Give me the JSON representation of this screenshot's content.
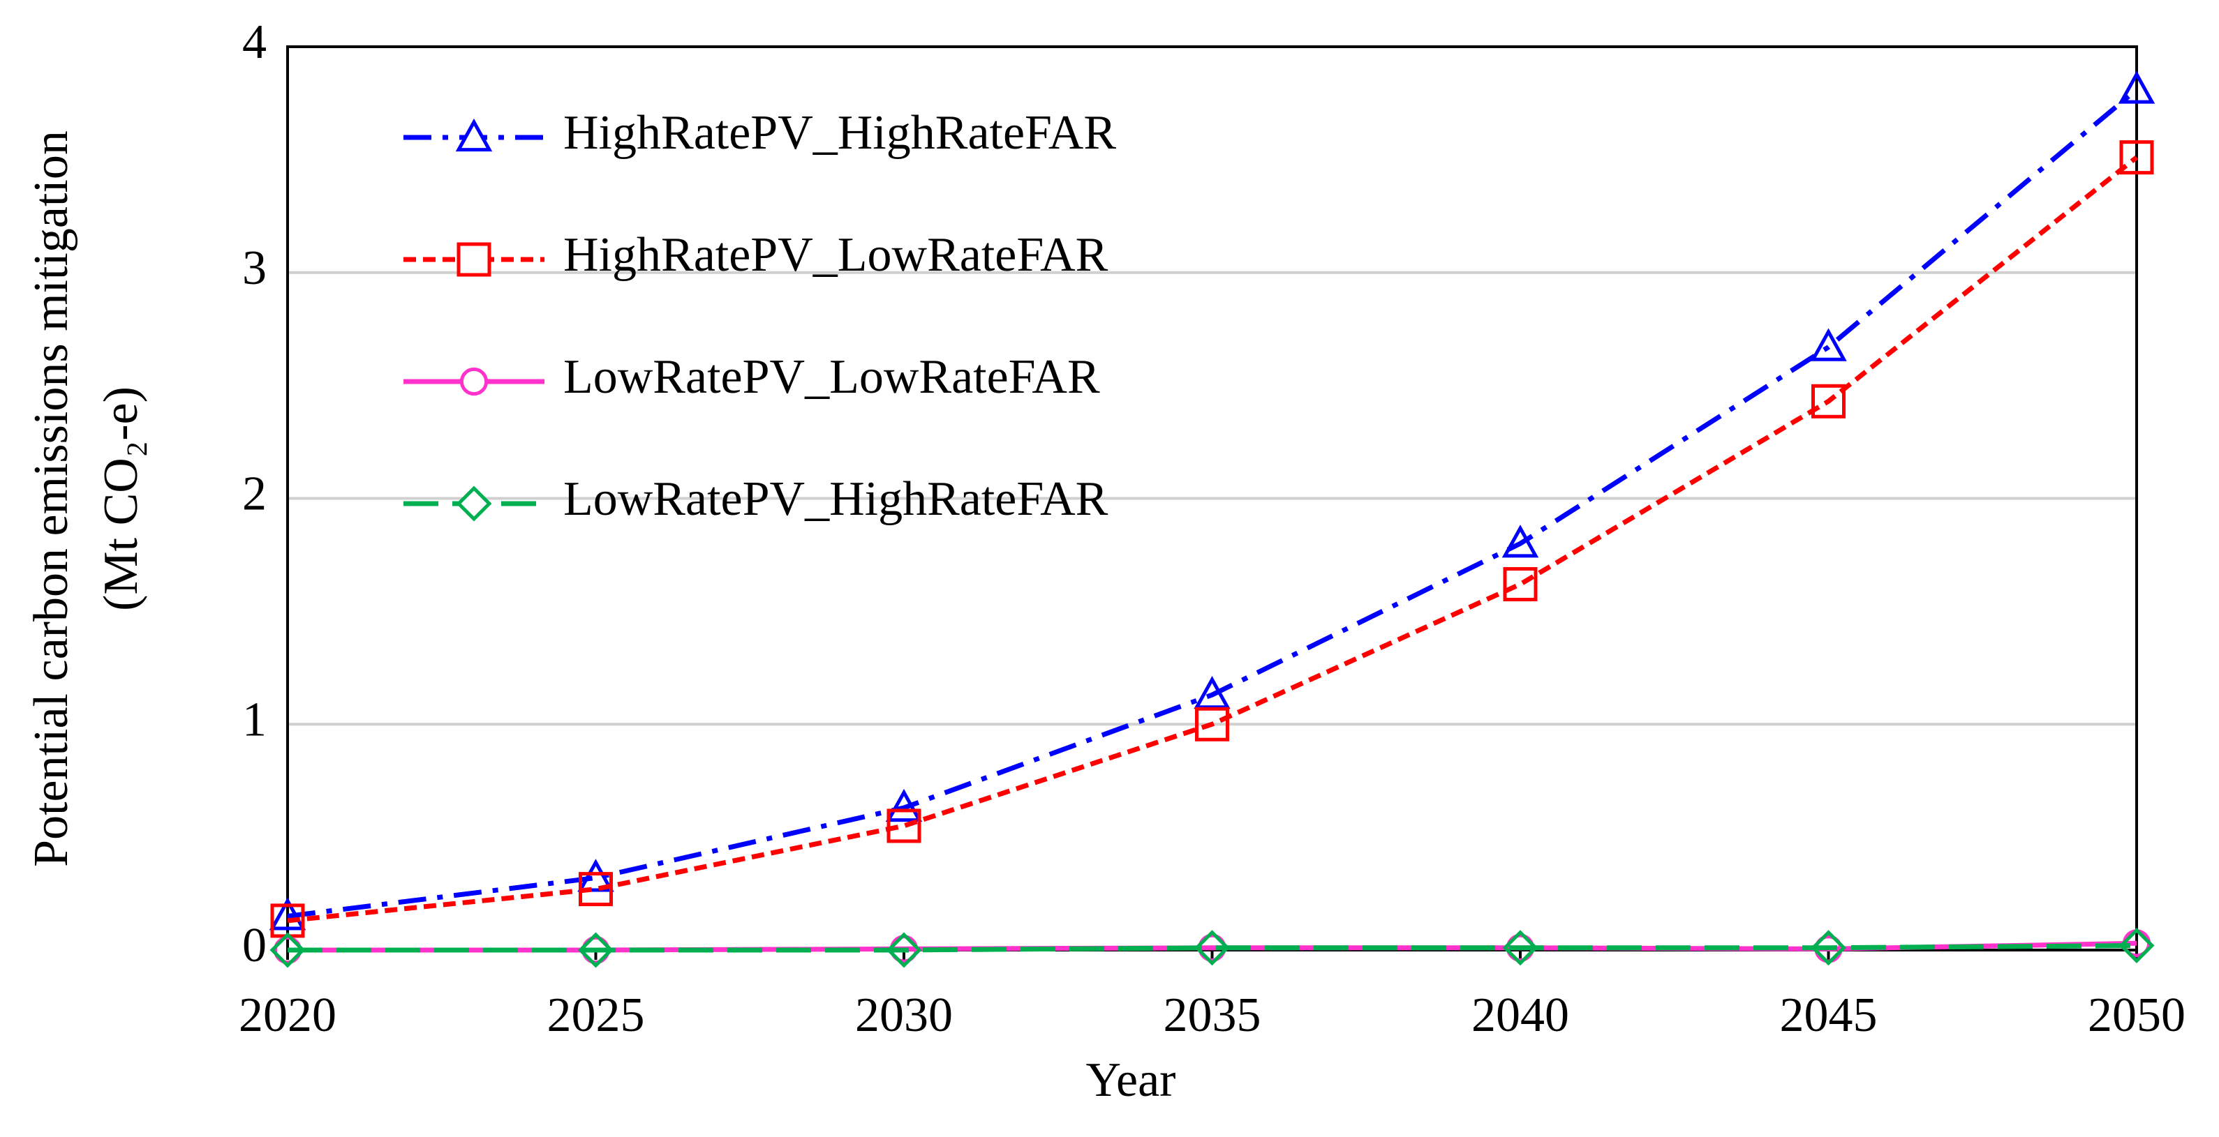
{
  "chart_data": {
    "type": "line",
    "y_label_line1": "Potential carbon emissions mitigation",
    "y_label_line2": "(Mt CO₂-e)",
    "x_label": "Year",
    "x": [
      2020,
      2025,
      2030,
      2035,
      2040,
      2045,
      2050
    ],
    "xlim": [
      2020,
      2050
    ],
    "xticks": [
      2020,
      2025,
      2030,
      2035,
      2040,
      2045,
      2050
    ],
    "ylim": [
      0,
      4
    ],
    "yticks": [
      0,
      1,
      2,
      3,
      4
    ],
    "grid": true,
    "legend": "upper-left",
    "series": [
      {
        "name": "HighRatePV_HighRateFAR",
        "color": "#0000ff",
        "marker": "triangle",
        "dash": "dashdot",
        "values": [
          0.15,
          0.32,
          0.63,
          1.13,
          1.8,
          2.67,
          3.81
        ]
      },
      {
        "name": "HighRatePV_LowRateFAR",
        "color": "#ff0000",
        "marker": "square",
        "dash": "dashed",
        "values": [
          0.13,
          0.27,
          0.55,
          1.0,
          1.62,
          2.43,
          3.51
        ]
      },
      {
        "name": "LowRatePV_LowRateFAR",
        "color": "#ff33cc",
        "marker": "circle",
        "dash": "solid",
        "values": [
          0,
          0,
          0.005,
          0.01,
          0.01,
          0.005,
          0.03
        ]
      },
      {
        "name": "LowRatePV_HighRateFAR",
        "color": "#00b050",
        "marker": "diamond",
        "dash": "longdash",
        "values": [
          0,
          0,
          0,
          0.01,
          0.01,
          0.01,
          0.02
        ]
      }
    ]
  }
}
